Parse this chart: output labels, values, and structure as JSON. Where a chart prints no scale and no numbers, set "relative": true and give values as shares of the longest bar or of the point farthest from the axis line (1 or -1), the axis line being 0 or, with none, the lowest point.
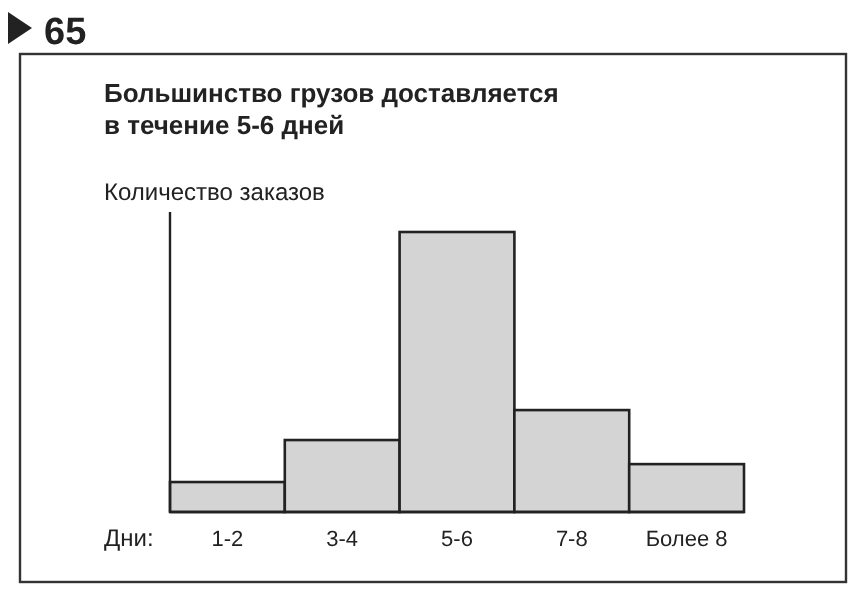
{
  "chart_data": {
    "type": "bar",
    "title": "Большинство грузов доставляется в течение 5-6 дней",
    "ylabel": "Количество заказов",
    "xlabel": "Дни:",
    "annotations": [
      "65"
    ],
    "categories": [
      "1-2",
      "3-4",
      "5-6",
      "7-8",
      "Более 8"
    ],
    "values": [
      0.107,
      0.257,
      1,
      0.364,
      0.171
    ],
    "color": "#d4d4d4",
    "relative": true
  }
}
